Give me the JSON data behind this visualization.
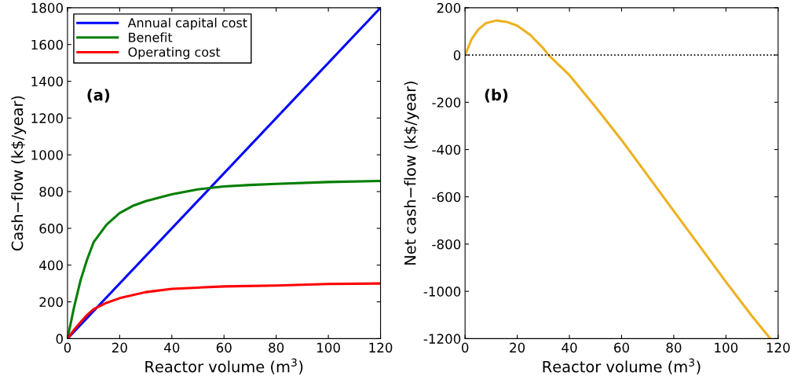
{
  "chart_data": [
    {
      "type": "line",
      "xlabel": "Reactor volume (m$^{3}$)",
      "ylabel": "Cash−flow (k$/year)",
      "annotations": [
        "(a)"
      ],
      "xlim": [
        0,
        120
      ],
      "xticks": [
        0,
        20,
        40,
        60,
        80,
        100,
        120
      ],
      "ylim": [
        0,
        1800
      ],
      "yticks": [
        0,
        200,
        400,
        600,
        800,
        1000,
        1200,
        1400,
        1600,
        1800
      ],
      "grid": false,
      "legend": "top left",
      "marker": "none",
      "line_style": "solid",
      "series": [
        {
          "name": "Annual capital cost",
          "color": "#0000ff",
          "x": [
            0,
            120
          ],
          "values": [
            0,
            1800
          ]
        },
        {
          "name": "Benefit",
          "color": "#007f00",
          "x": [
            0,
            2.5,
            5,
            7.5,
            10,
            15,
            20,
            25,
            30,
            40,
            50,
            60,
            70,
            80,
            100,
            120
          ],
          "values": [
            0,
            170,
            317,
            430,
            524,
            620,
            683,
            722,
            748,
            785,
            812,
            828,
            836,
            842,
            852,
            858
          ]
        },
        {
          "name": "Operating cost",
          "color": "#ff0000",
          "x": [
            0,
            2.5,
            5,
            7.5,
            10,
            15,
            20,
            30,
            40,
            60,
            80,
            100,
            120
          ],
          "values": [
            0,
            48,
            89,
            128,
            160,
            195,
            220,
            253,
            271,
            284,
            289,
            297,
            300
          ]
        }
      ]
    },
    {
      "type": "line",
      "xlabel": "Reactor volume (m$^{3}$)",
      "ylabel": "Net cash−flow (k$/year)",
      "annotations": [
        "(b)"
      ],
      "xlim": [
        0,
        120
      ],
      "xticks": [
        0,
        20,
        40,
        60,
        80,
        100,
        120
      ],
      "ylim": [
        -1200,
        200
      ],
      "yticks": [
        -1200,
        -1000,
        -800,
        -600,
        -400,
        -200,
        0,
        200
      ],
      "grid": false,
      "legend": false,
      "marker": "none",
      "line_style": "solid",
      "ref_lines": [
        {
          "axis": "y",
          "value": 0,
          "color": "#000000",
          "line_style": "dotted"
        }
      ],
      "series": [
        {
          "color": "#edb120",
          "x": [
            0,
            2.5,
            5,
            8,
            12,
            16,
            20,
            25,
            30,
            32,
            40,
            50,
            60,
            70,
            80,
            90,
            100,
            110,
            117
          ],
          "values": [
            0,
            67,
            107,
            135,
            146,
            140,
            124,
            85,
            28,
            0,
            -85,
            -220,
            -360,
            -510,
            -660,
            -810,
            -960,
            -1105,
            -1200
          ]
        }
      ]
    }
  ]
}
